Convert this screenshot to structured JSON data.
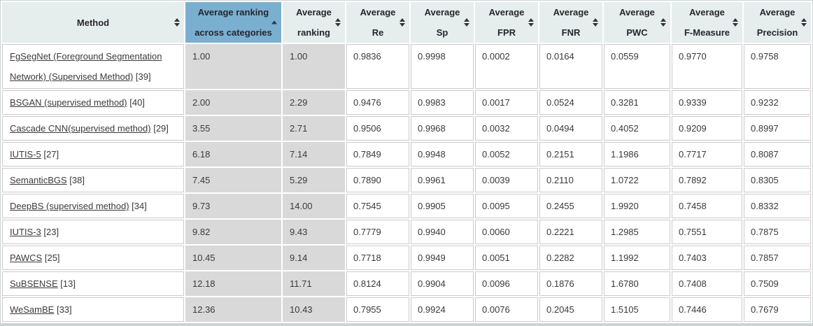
{
  "colors": {
    "active_sort_header_bg": "#7aafd0",
    "header_bg": "#e5eded",
    "ranking_column_bg": "#d9d9d9",
    "page_frame_bg": "#ccd3d3",
    "cell_border": "#cbcbcb",
    "text": "#3a3a3a"
  },
  "table": {
    "columns": [
      {
        "key": "method",
        "lines": [
          "Method"
        ],
        "sort": "both",
        "active": false,
        "shaded": false
      },
      {
        "key": "avg-ranking-across-categories",
        "lines": [
          "Average ranking",
          "across categories"
        ],
        "sort": "asc",
        "active": true,
        "shaded": true
      },
      {
        "key": "avg-ranking",
        "lines": [
          "Average",
          "ranking"
        ],
        "sort": "both",
        "active": false,
        "shaded": true
      },
      {
        "key": "avg-re",
        "lines": [
          "Average",
          "Re"
        ],
        "sort": "both",
        "active": false,
        "shaded": false
      },
      {
        "key": "avg-sp",
        "lines": [
          "Average",
          "Sp"
        ],
        "sort": "both",
        "active": false,
        "shaded": false
      },
      {
        "key": "avg-fpr",
        "lines": [
          "Average",
          "FPR"
        ],
        "sort": "both",
        "active": false,
        "shaded": false
      },
      {
        "key": "avg-fnr",
        "lines": [
          "Average",
          "FNR"
        ],
        "sort": "both",
        "active": false,
        "shaded": false
      },
      {
        "key": "avg-pwc",
        "lines": [
          "Average",
          "PWC"
        ],
        "sort": "both",
        "active": false,
        "shaded": false
      },
      {
        "key": "avg-f-measure",
        "lines": [
          "Average",
          "F-Measure"
        ],
        "sort": "both",
        "active": false,
        "shaded": false
      },
      {
        "key": "avg-precision",
        "lines": [
          "Average",
          "Precision"
        ],
        "sort": "both",
        "active": false,
        "shaded": false
      }
    ],
    "rows": [
      {
        "method": "FgSegNet (Foreground Segmentation Network) (Supervised Method)",
        "ref": "[39]",
        "values": [
          "1.00",
          "1.00",
          "0.9836",
          "0.9998",
          "0.0002",
          "0.0164",
          "0.0559",
          "0.9770",
          "0.9758"
        ]
      },
      {
        "method": "BSGAN (supervised method)",
        "ref": "[40]",
        "values": [
          "2.00",
          "2.29",
          "0.9476",
          "0.9983",
          "0.0017",
          "0.0524",
          "0.3281",
          "0.9339",
          "0.9232"
        ]
      },
      {
        "method": "Cascade CNN(supervised method)",
        "ref": "[29]",
        "values": [
          "3.55",
          "2.71",
          "0.9506",
          "0.9968",
          "0.0032",
          "0.0494",
          "0.4052",
          "0.9209",
          "0.8997"
        ]
      },
      {
        "method": "IUTIS-5",
        "ref": "[27]",
        "values": [
          "6.18",
          "7.14",
          "0.7849",
          "0.9948",
          "0.0052",
          "0.2151",
          "1.1986",
          "0.7717",
          "0.8087"
        ]
      },
      {
        "method": "SemanticBGS",
        "ref": "[38]",
        "values": [
          "7.45",
          "5.29",
          "0.7890",
          "0.9961",
          "0.0039",
          "0.2110",
          "1.0722",
          "0.7892",
          "0.8305"
        ]
      },
      {
        "method": "DeepBS (supervised method)",
        "ref": "[34]",
        "values": [
          "9.73",
          "14.00",
          "0.7545",
          "0.9905",
          "0.0095",
          "0.2455",
          "1.9920",
          "0.7458",
          "0.8332"
        ]
      },
      {
        "method": "IUTIS-3",
        "ref": "[23]",
        "values": [
          "9.82",
          "9.43",
          "0.7779",
          "0.9940",
          "0.0060",
          "0.2221",
          "1.2985",
          "0.7551",
          "0.7875"
        ]
      },
      {
        "method": "PAWCS",
        "ref": "[25]",
        "values": [
          "10.45",
          "9.14",
          "0.7718",
          "0.9949",
          "0.0051",
          "0.2282",
          "1.1992",
          "0.7403",
          "0.7857"
        ]
      },
      {
        "method": "SuBSENSE",
        "ref": "[13]",
        "values": [
          "12.18",
          "11.71",
          "0.8124",
          "0.9904",
          "0.0096",
          "0.1876",
          "1.6780",
          "0.7408",
          "0.7509"
        ]
      },
      {
        "method": "WeSamBE",
        "ref": "[33]",
        "values": [
          "12.36",
          "10.43",
          "0.7955",
          "0.9924",
          "0.0076",
          "0.2045",
          "1.5105",
          "0.7446",
          "0.7679"
        ]
      }
    ]
  }
}
